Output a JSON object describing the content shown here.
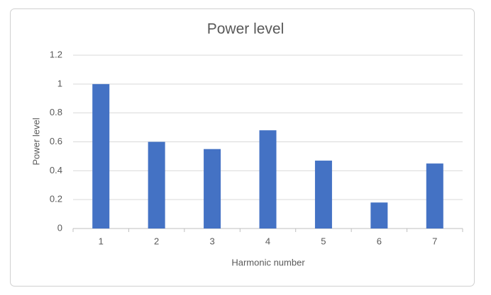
{
  "chart_data": {
    "type": "bar",
    "title": "Power level",
    "x_label": "Harmonic number",
    "y_label": "Power level",
    "categories": [
      "1",
      "2",
      "3",
      "4",
      "5",
      "6",
      "7"
    ],
    "values": [
      1,
      0.6,
      0.55,
      0.68,
      0.47,
      0.18,
      0.45
    ],
    "color": "#4472c4",
    "ylim": [
      0,
      1.2
    ],
    "yticks": [
      0,
      0.2,
      0.4,
      0.6,
      0.8,
      1,
      1.2
    ],
    "grid": true
  }
}
